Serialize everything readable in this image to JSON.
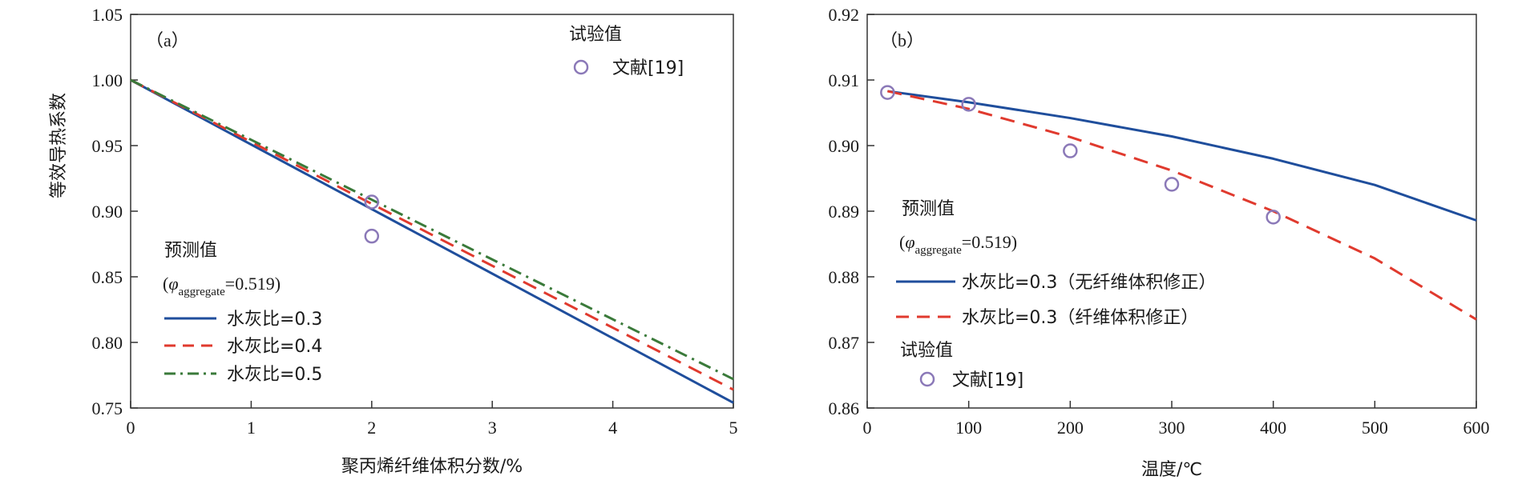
{
  "chart_data": [
    {
      "type": "line",
      "panel_label": "（a）",
      "xlabel": "聚丙烯纤维体积分数/%",
      "ylabel": "等效导热系数",
      "xlim": [
        0,
        5
      ],
      "ylim": [
        0.75,
        1.05
      ],
      "xticks": [
        "0",
        "1",
        "2",
        "3",
        "4",
        "5"
      ],
      "yticks": [
        "0.75",
        "0.80",
        "0.85",
        "0.90",
        "0.95",
        "1.00",
        "1.05"
      ],
      "predicted_heading": "预测值",
      "phi_symbol": "φ",
      "phi_subscript": "aggregate",
      "phi_value": "=0.519)",
      "series": [
        {
          "name": "水灰比=0.3",
          "style": "solid",
          "color": "#1f4e9c",
          "x": [
            0,
            5
          ],
          "y": [
            1.0,
            0.754
          ]
        },
        {
          "name": "水灰比=0.4",
          "style": "dashed",
          "color": "#e03a2e",
          "x": [
            0,
            5
          ],
          "y": [
            1.0,
            0.764
          ]
        },
        {
          "name": "水灰比=0.5",
          "style": "dashdot",
          "color": "#3a7a3a",
          "x": [
            0,
            5
          ],
          "y": [
            1.0,
            0.772
          ]
        }
      ],
      "experimental": {
        "heading": "试验值",
        "name": "文献[19]",
        "color": "#8b79b8",
        "points": [
          [
            2,
            0.907
          ],
          [
            2,
            0.881
          ]
        ]
      },
      "grid": false
    },
    {
      "type": "line",
      "panel_label": "（b）",
      "xlabel": "温度/℃",
      "ylabel": "",
      "xlim": [
        0,
        600
      ],
      "ylim": [
        0.86,
        0.92
      ],
      "xticks": [
        "0",
        "100",
        "200",
        "300",
        "400",
        "500",
        "600"
      ],
      "yticks": [
        "0.86",
        "0.87",
        "0.88",
        "0.89",
        "0.90",
        "0.91",
        "0.92"
      ],
      "predicted_heading": "预测值",
      "phi_symbol": "φ",
      "phi_subscript": "aggregate",
      "phi_value": "=0.519)",
      "series": [
        {
          "name": "水灰比=0.3（无纤维体积修正）",
          "style": "solid",
          "color": "#1f4e9c",
          "x": [
            20,
            100,
            200,
            300,
            400,
            500,
            600
          ],
          "y": [
            0.9083,
            0.9066,
            0.9042,
            0.9014,
            0.898,
            0.894,
            0.8886
          ]
        },
        {
          "name": "水灰比=0.3（纤维体积修正）",
          "style": "dashed",
          "color": "#e03a2e",
          "x": [
            20,
            100,
            200,
            300,
            400,
            500,
            600
          ],
          "y": [
            0.9083,
            0.9056,
            0.9013,
            0.8962,
            0.89,
            0.8828,
            0.8735
          ]
        }
      ],
      "experimental": {
        "heading": "试验值",
        "name": "文献[19]",
        "color": "#8b79b8",
        "points": [
          [
            20,
            0.9081
          ],
          [
            100,
            0.9063
          ],
          [
            200,
            0.8992
          ],
          [
            300,
            0.8941
          ],
          [
            400,
            0.8891
          ]
        ]
      },
      "grid": false
    }
  ]
}
